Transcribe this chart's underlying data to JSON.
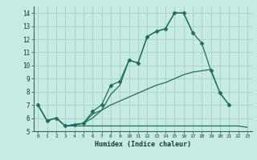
{
  "title": "",
  "xlabel": "Humidex (Indice chaleur)",
  "ylabel": "",
  "bg_color": "#c8eae4",
  "grid_color": "#a8d4cc",
  "line_color": "#1a6e5e",
  "xlim": [
    -0.5,
    23.5
  ],
  "ylim": [
    5.0,
    14.5
  ],
  "xticks": [
    0,
    1,
    2,
    3,
    4,
    5,
    6,
    7,
    8,
    9,
    10,
    11,
    12,
    13,
    14,
    15,
    16,
    17,
    18,
    19,
    20,
    21,
    22,
    23
  ],
  "yticks": [
    5,
    6,
    7,
    8,
    9,
    10,
    11,
    12,
    13,
    14
  ],
  "lines": [
    {
      "x": [
        0,
        1,
        2,
        3,
        4,
        5,
        6,
        7,
        8,
        9,
        10,
        11,
        12,
        13,
        14,
        15,
        16,
        17,
        18,
        19,
        20,
        21
      ],
      "y": [
        7.0,
        5.8,
        6.0,
        5.4,
        5.5,
        5.6,
        6.5,
        7.0,
        8.5,
        8.8,
        10.4,
        10.2,
        12.2,
        12.6,
        12.8,
        14.0,
        14.0,
        12.5,
        11.7,
        9.6,
        7.9,
        7.0
      ],
      "has_markers": true
    },
    {
      "x": [
        0,
        1,
        2,
        3,
        4,
        5,
        6,
        7,
        8,
        9,
        10,
        11,
        12,
        13,
        14,
        15,
        16,
        17
      ],
      "y": [
        7.0,
        5.8,
        6.0,
        5.4,
        5.5,
        5.6,
        6.0,
        6.6,
        7.8,
        8.5,
        10.4,
        10.2,
        12.2,
        12.6,
        12.8,
        14.0,
        14.0,
        12.5
      ],
      "has_markers": false
    },
    {
      "x": [
        0,
        1,
        2,
        3,
        4,
        5,
        6,
        7,
        8,
        9,
        10,
        11,
        12,
        13,
        14,
        15,
        16,
        17,
        18,
        19,
        20,
        21
      ],
      "y": [
        7.0,
        5.8,
        6.0,
        5.4,
        5.5,
        5.6,
        6.3,
        6.6,
        7.0,
        7.3,
        7.6,
        7.9,
        8.2,
        8.5,
        8.7,
        9.0,
        9.3,
        9.5,
        9.6,
        9.7,
        7.9,
        7.0
      ],
      "has_markers": false
    },
    {
      "x": [
        3,
        4,
        5,
        6,
        7,
        8,
        9,
        10,
        11,
        12,
        13,
        14,
        15,
        16,
        17,
        18,
        19,
        20,
        21,
        22,
        23
      ],
      "y": [
        5.4,
        5.4,
        5.4,
        5.4,
        5.4,
        5.4,
        5.4,
        5.4,
        5.4,
        5.4,
        5.4,
        5.4,
        5.4,
        5.4,
        5.4,
        5.4,
        5.4,
        5.4,
        5.4,
        5.4,
        5.3
      ],
      "has_markers": false
    }
  ]
}
